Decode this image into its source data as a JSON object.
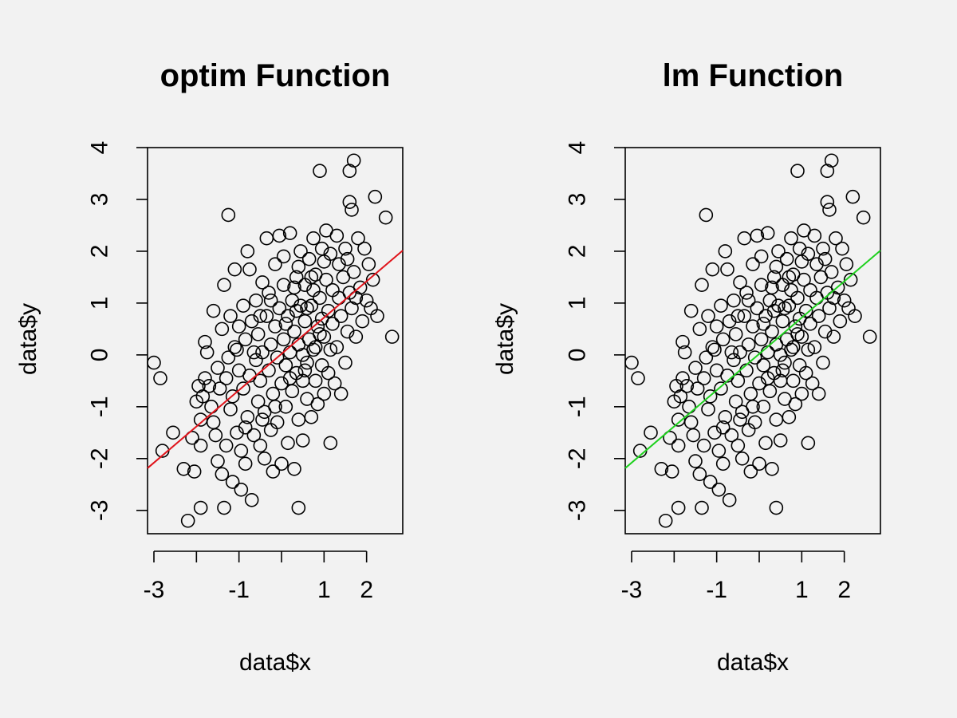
{
  "colors": {
    "background": "#f2f2f2",
    "points": "#000000"
  },
  "chart_data": [
    {
      "type": "scatter",
      "title": "optim Function",
      "xlabel": "data$x",
      "ylabel": "data$y",
      "xlim": [
        -3.15,
        2.85
      ],
      "ylim": [
        -3.45,
        4.0
      ],
      "xticks": [
        -3,
        -2,
        -1,
        0,
        1,
        2
      ],
      "xtick_labels": [
        "-3",
        "",
        "-1",
        "",
        "1",
        "2"
      ],
      "yticks": [
        -3,
        -2,
        -1,
        0,
        1,
        2,
        3,
        4
      ],
      "ytick_labels": [
        "-3",
        "-2",
        "-1",
        "0",
        "1",
        "2",
        "3",
        "4"
      ],
      "grid": false,
      "legend": "none",
      "fit_line": {
        "intercept": 0.02,
        "slope": 0.7,
        "color": "#e0141b"
      },
      "points_ref": "points"
    },
    {
      "type": "scatter",
      "title": "lm Function",
      "xlabel": "data$x",
      "ylabel": "data$y",
      "xlim": [
        -3.15,
        2.85
      ],
      "ylim": [
        -3.45,
        4.0
      ],
      "xticks": [
        -3,
        -2,
        -1,
        0,
        1,
        2
      ],
      "xtick_labels": [
        "-3",
        "",
        "-1",
        "",
        "1",
        "2"
      ],
      "yticks": [
        -3,
        -2,
        -1,
        0,
        1,
        2,
        3,
        4
      ],
      "ytick_labels": [
        "-3",
        "-2",
        "-1",
        "0",
        "1",
        "2",
        "3",
        "4"
      ],
      "grid": false,
      "legend": "none",
      "fit_line": {
        "intercept": 0.02,
        "slope": 0.7,
        "color": "#1fd11f"
      },
      "points_ref": "points"
    }
  ],
  "points": [
    [
      -3.0,
      -0.15
    ],
    [
      -2.85,
      -0.45
    ],
    [
      -2.8,
      -1.85
    ],
    [
      -2.55,
      -1.5
    ],
    [
      -2.2,
      -3.2
    ],
    [
      -2.05,
      -2.25
    ],
    [
      -2.0,
      -0.9
    ],
    [
      -1.9,
      -2.95
    ],
    [
      -1.9,
      -1.75
    ],
    [
      -1.9,
      -1.25
    ],
    [
      -1.85,
      -0.8
    ],
    [
      -1.8,
      -0.45
    ],
    [
      -1.8,
      0.25
    ],
    [
      -1.75,
      0.05
    ],
    [
      -1.7,
      -0.6
    ],
    [
      -1.65,
      -1.0
    ],
    [
      -1.6,
      0.85
    ],
    [
      -1.55,
      -1.55
    ],
    [
      -1.5,
      -2.05
    ],
    [
      -1.5,
      -0.25
    ],
    [
      -1.45,
      -0.65
    ],
    [
      -1.4,
      -2.3
    ],
    [
      -1.4,
      0.5
    ],
    [
      -1.35,
      -2.95
    ],
    [
      -1.35,
      1.35
    ],
    [
      -1.3,
      -1.75
    ],
    [
      -1.3,
      -0.45
    ],
    [
      -1.25,
      2.7
    ],
    [
      -1.25,
      -0.05
    ],
    [
      -1.2,
      -1.05
    ],
    [
      -1.2,
      0.75
    ],
    [
      -1.15,
      -2.45
    ],
    [
      -1.15,
      -0.8
    ],
    [
      -1.1,
      0.15
    ],
    [
      -1.1,
      1.65
    ],
    [
      -1.05,
      -1.5
    ],
    [
      -1.0,
      -0.3
    ],
    [
      -1.0,
      0.55
    ],
    [
      -0.95,
      -2.6
    ],
    [
      -0.95,
      -1.85
    ],
    [
      -0.9,
      0.95
    ],
    [
      -0.9,
      -0.65
    ],
    [
      -0.85,
      -2.1
    ],
    [
      -0.85,
      0.3
    ],
    [
      -0.8,
      2.0
    ],
    [
      -0.8,
      -1.2
    ],
    [
      -0.75,
      -0.4
    ],
    [
      -0.75,
      1.65
    ],
    [
      -0.7,
      -2.8
    ],
    [
      -0.7,
      0.65
    ],
    [
      -0.65,
      -1.55
    ],
    [
      -0.6,
      -0.1
    ],
    [
      -0.6,
      1.05
    ],
    [
      -0.55,
      -0.9
    ],
    [
      -0.55,
      0.4
    ],
    [
      -0.5,
      -1.75
    ],
    [
      -0.5,
      -0.5
    ],
    [
      -0.45,
      1.4
    ],
    [
      -0.45,
      0.05
    ],
    [
      -0.4,
      -2.0
    ],
    [
      -0.4,
      -1.1
    ],
    [
      -0.35,
      0.75
    ],
    [
      -0.35,
      2.25
    ],
    [
      -0.3,
      -0.3
    ],
    [
      -0.3,
      1.2
    ],
    [
      -0.25,
      -1.45
    ],
    [
      -0.25,
      0.2
    ],
    [
      -0.2,
      -2.25
    ],
    [
      -0.2,
      -0.75
    ],
    [
      -0.15,
      0.55
    ],
    [
      -0.15,
      1.75
    ],
    [
      -0.1,
      -1.3
    ],
    [
      -0.1,
      -0.05
    ],
    [
      -0.05,
      0.9
    ],
    [
      -0.05,
      2.3
    ],
    [
      0.0,
      -0.55
    ],
    [
      0.0,
      -2.1
    ],
    [
      0.05,
      0.3
    ],
    [
      0.05,
      1.35
    ],
    [
      0.1,
      -1.0
    ],
    [
      0.1,
      -0.2
    ],
    [
      0.15,
      0.75
    ],
    [
      0.15,
      -1.7
    ],
    [
      0.2,
      2.35
    ],
    [
      0.2,
      0.05
    ],
    [
      0.25,
      -0.7
    ],
    [
      0.25,
      1.05
    ],
    [
      0.3,
      -2.2
    ],
    [
      0.3,
      0.45
    ],
    [
      0.35,
      -0.35
    ],
    [
      0.35,
      1.5
    ],
    [
      0.4,
      -1.25
    ],
    [
      0.4,
      0.2
    ],
    [
      0.4,
      -2.95
    ],
    [
      0.45,
      0.95
    ],
    [
      0.45,
      2.0
    ],
    [
      0.5,
      -0.5
    ],
    [
      0.5,
      -1.65
    ],
    [
      0.55,
      0.65
    ],
    [
      0.55,
      1.35
    ],
    [
      0.6,
      -0.15
    ],
    [
      0.6,
      -0.85
    ],
    [
      0.65,
      1.85
    ],
    [
      0.65,
      0.3
    ],
    [
      0.7,
      -1.2
    ],
    [
      0.7,
      0.95
    ],
    [
      0.75,
      2.25
    ],
    [
      0.75,
      0.1
    ],
    [
      0.8,
      -0.5
    ],
    [
      0.8,
      1.55
    ],
    [
      0.85,
      0.55
    ],
    [
      0.85,
      -0.95
    ],
    [
      0.9,
      3.55
    ],
    [
      0.9,
      1.1
    ],
    [
      0.95,
      -0.2
    ],
    [
      0.95,
      2.05
    ],
    [
      1.0,
      0.35
    ],
    [
      1.0,
      -0.75
    ],
    [
      1.05,
      1.45
    ],
    [
      1.05,
      2.4
    ],
    [
      1.1,
      0.85
    ],
    [
      1.1,
      -0.35
    ],
    [
      1.15,
      1.95
    ],
    [
      1.15,
      -1.7
    ],
    [
      1.2,
      0.6
    ],
    [
      1.2,
      1.25
    ],
    [
      1.25,
      -0.55
    ],
    [
      1.3,
      2.3
    ],
    [
      1.3,
      0.15
    ],
    [
      1.35,
      1.75
    ],
    [
      1.4,
      -0.75
    ],
    [
      1.4,
      0.75
    ],
    [
      1.45,
      1.5
    ],
    [
      1.5,
      2.05
    ],
    [
      1.5,
      -0.15
    ],
    [
      1.55,
      0.45
    ],
    [
      1.6,
      3.55
    ],
    [
      1.6,
      2.95
    ],
    [
      1.6,
      1.2
    ],
    [
      1.65,
      2.8
    ],
    [
      1.65,
      0.9
    ],
    [
      1.7,
      3.75
    ],
    [
      1.7,
      1.6
    ],
    [
      1.75,
      0.35
    ],
    [
      1.8,
      2.25
    ],
    [
      1.85,
      1.3
    ],
    [
      1.9,
      0.65
    ],
    [
      1.95,
      2.05
    ],
    [
      2.0,
      1.05
    ],
    [
      2.05,
      1.75
    ],
    [
      2.1,
      0.9
    ],
    [
      2.15,
      1.45
    ],
    [
      2.2,
      3.05
    ],
    [
      2.25,
      0.75
    ],
    [
      2.45,
      2.65
    ],
    [
      2.6,
      0.35
    ],
    [
      -2.3,
      -2.2
    ],
    [
      -2.1,
      -1.6
    ],
    [
      -1.95,
      -0.6
    ],
    [
      -1.6,
      -1.3
    ],
    [
      -1.05,
      0.1
    ],
    [
      -0.85,
      -1.4
    ],
    [
      -0.65,
      0.05
    ],
    [
      -0.45,
      -1.25
    ],
    [
      -0.25,
      1.05
    ],
    [
      0.05,
      1.9
    ],
    [
      0.35,
      0.85
    ],
    [
      0.55,
      -0.3
    ],
    [
      0.75,
      1.25
    ],
    [
      0.95,
      0.7
    ],
    [
      1.15,
      0.1
    ],
    [
      1.35,
      1.1
    ],
    [
      1.55,
      1.85
    ],
    [
      1.75,
      1.1
    ],
    [
      -0.5,
      0.75
    ],
    [
      0.2,
      -0.45
    ],
    [
      0.4,
      1.7
    ],
    [
      0.6,
      0.9
    ],
    [
      0.8,
      0.15
    ],
    [
      1.0,
      1.8
    ],
    [
      -0.15,
      -1.0
    ],
    [
      0.1,
      0.6
    ],
    [
      0.3,
      1.3
    ],
    [
      0.5,
      0.0
    ],
    [
      0.7,
      1.5
    ],
    [
      0.9,
      0.4
    ]
  ]
}
